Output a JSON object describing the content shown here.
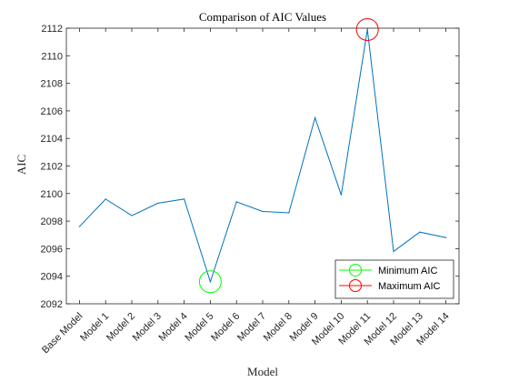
{
  "chart_data": {
    "type": "line",
    "title": "Comparison of AIC Values",
    "xlabel": "Model",
    "ylabel": "AIC",
    "categories": [
      "Base Model",
      "Model 1",
      "Model 2",
      "Model 3",
      "Model 4",
      "Model 5",
      "Model 6",
      "Model 7",
      "Model 8",
      "Model 9",
      "Model 10",
      "Model 11",
      "Model 12",
      "Model 13",
      "Model 14"
    ],
    "series": [
      {
        "values": [
          2097.6,
          2099.6,
          2098.4,
          2099.3,
          2099.6,
          2093.6,
          2099.4,
          2098.7,
          2098.6,
          2105.5,
          2099.9,
          2111.9,
          2095.8,
          2097.2,
          2096.8
        ],
        "color": "#0072bd"
      }
    ],
    "ylim": [
      2092,
      2112
    ],
    "yticks": [
      2092,
      2094,
      2096,
      2098,
      2100,
      2102,
      2104,
      2106,
      2108,
      2110,
      2112
    ],
    "grid": false,
    "markers": [
      {
        "name": "Minimum AIC",
        "category": "Model 5",
        "value": 2093.6,
        "color": "#00ff00"
      },
      {
        "name": "Maximum AIC",
        "category": "Model 11",
        "value": 2111.9,
        "color": "#ff0000"
      }
    ],
    "legend": {
      "position": "bottom-right",
      "entries": [
        "Minimum AIC",
        "Maximum AIC"
      ]
    }
  }
}
